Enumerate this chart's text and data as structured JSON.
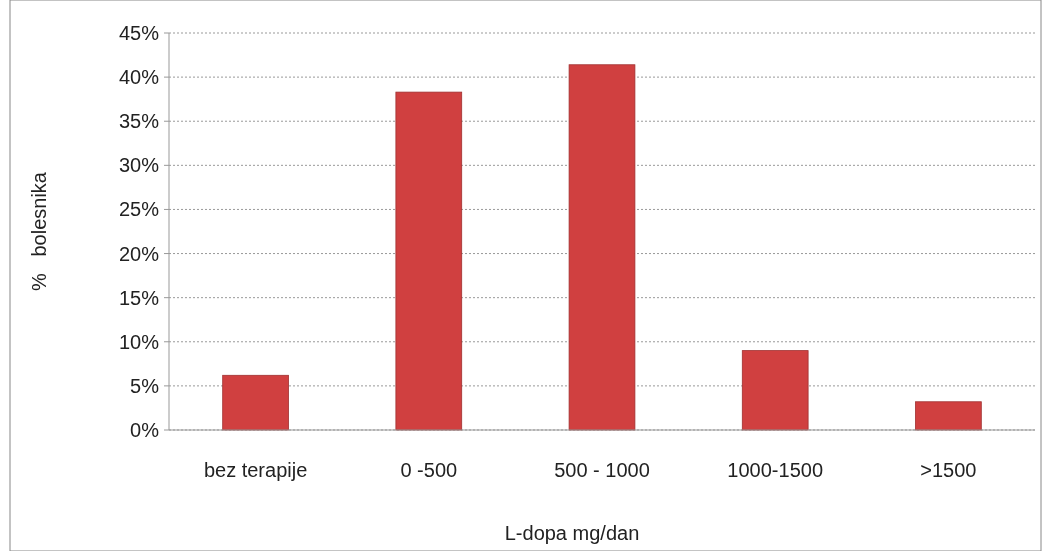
{
  "chart_data": {
    "type": "bar",
    "xlabel": "L-dopa mg/dan",
    "ylabel": "%   bolesnika",
    "categories": [
      "bez terapije",
      "0 -500",
      "500 - 1000",
      "1000-1500",
      ">1500"
    ],
    "values": [
      6.2,
      38.3,
      41.4,
      9.0,
      3.2
    ],
    "color": "#d04040",
    "ylim": [
      0,
      45
    ],
    "yticks": [
      {
        "value": 0,
        "label": "0%"
      },
      {
        "value": 5,
        "label": "5%"
      },
      {
        "value": 10,
        "label": "10%"
      },
      {
        "value": 15,
        "label": "15%"
      },
      {
        "value": 20,
        "label": "20%"
      },
      {
        "value": 25,
        "label": "25%"
      },
      {
        "value": 30,
        "label": "30%"
      },
      {
        "value": 35,
        "label": "35%"
      },
      {
        "value": 40,
        "label": "40%"
      },
      {
        "value": 45,
        "label": "45%"
      }
    ],
    "grid": "y"
  }
}
